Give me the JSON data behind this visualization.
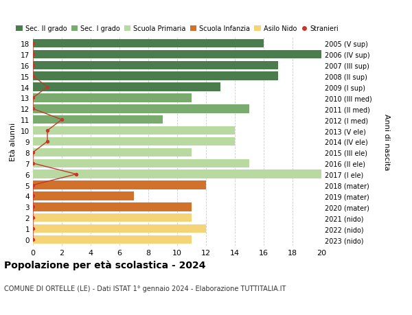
{
  "ages": [
    18,
    17,
    16,
    15,
    14,
    13,
    12,
    11,
    10,
    9,
    8,
    7,
    6,
    5,
    4,
    3,
    2,
    1,
    0
  ],
  "right_labels": [
    "2005 (V sup)",
    "2006 (IV sup)",
    "2007 (III sup)",
    "2008 (II sup)",
    "2009 (I sup)",
    "2010 (III med)",
    "2011 (II med)",
    "2012 (I med)",
    "2013 (V ele)",
    "2014 (IV ele)",
    "2015 (III ele)",
    "2016 (II ele)",
    "2017 (I ele)",
    "2018 (mater)",
    "2019 (mater)",
    "2020 (mater)",
    "2021 (nido)",
    "2022 (nido)",
    "2023 (nido)"
  ],
  "bar_values": [
    16,
    20,
    17,
    17,
    13,
    11,
    15,
    9,
    14,
    14,
    11,
    15,
    20,
    12,
    7,
    11,
    11,
    12,
    11
  ],
  "bar_colors": [
    "#4a7c4e",
    "#4a7c4e",
    "#4a7c4e",
    "#4a7c4e",
    "#4a7c4e",
    "#7aab6e",
    "#7aab6e",
    "#7aab6e",
    "#b8d9a0",
    "#b8d9a0",
    "#b8d9a0",
    "#b8d9a0",
    "#b8d9a0",
    "#d2722a",
    "#d2722a",
    "#d2722a",
    "#f5d478",
    "#f5d478",
    "#f5d478"
  ],
  "stranieri_x": [
    0,
    0,
    0,
    0,
    1,
    0,
    0,
    2,
    1,
    1,
    0,
    0,
    3,
    0,
    0,
    0,
    0,
    0,
    0
  ],
  "title": "Popolazione per età scolastica - 2024",
  "subtitle": "COMUNE DI ORTELLE (LE) - Dati ISTAT 1° gennaio 2024 - Elaborazione TUTTITALIA.IT",
  "ylabel": "Età alunni",
  "right_ylabel": "Anni di nascita",
  "xlim": [
    0,
    20
  ],
  "xticks": [
    0,
    2,
    4,
    6,
    8,
    10,
    12,
    14,
    16,
    18,
    20
  ],
  "background_color": "#ffffff",
  "legend_labels": [
    "Sec. II grado",
    "Sec. I grado",
    "Scuola Primaria",
    "Scuola Infanzia",
    "Asilo Nido",
    "Stranieri"
  ],
  "legend_colors": [
    "#4a7c4e",
    "#7aab6e",
    "#b8d9a0",
    "#d2722a",
    "#f5d478",
    "#c0392b"
  ],
  "grid_color": "#cccccc",
  "bar_height": 0.78,
  "stranieri_line_color": "#c0392b",
  "stranieri_marker_color": "#c0392b"
}
